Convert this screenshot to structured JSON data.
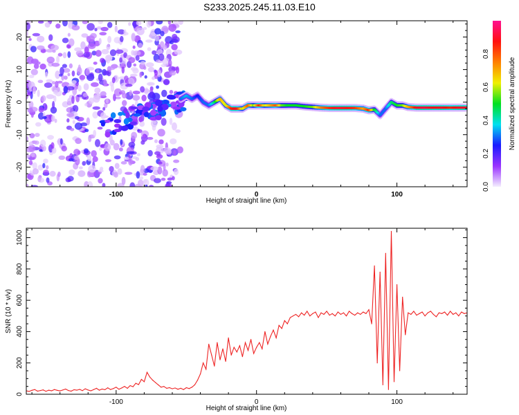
{
  "chart_data": [
    {
      "type": "heatmap",
      "title": "S233.2025.245.11.03.E10",
      "xlabel": "Height of straight line (km)",
      "ylabel": "Frequency (Hz)",
      "xlim": [
        -164,
        150
      ],
      "ylim": [
        -26,
        25
      ],
      "xticks": [
        -100,
        0,
        100
      ],
      "yticks": [
        -20,
        -10,
        0,
        10,
        20
      ],
      "colorbar": {
        "label": "Normalized spectral amplitude",
        "range": [
          0,
          1
        ],
        "ticks": [
          "0.0",
          "0.2",
          "0.4",
          "0.6",
          "0.8"
        ],
        "colors": [
          "#f4eefe",
          "#9a33ff",
          "#1a1aff",
          "#00e0f0",
          "#00e020",
          "#f0f000",
          "#ff8000",
          "#ff1010",
          "#ff1090"
        ]
      },
      "ridge": [
        [
          -54,
          1,
          0.3
        ],
        [
          -50,
          2,
          0.35
        ],
        [
          -46,
          1,
          0.3
        ],
        [
          -42,
          2,
          0.25
        ],
        [
          -38,
          0,
          0.3
        ],
        [
          -34,
          -1,
          0.3
        ],
        [
          -30,
          0,
          0.45
        ],
        [
          -26,
          1,
          0.7
        ],
        [
          -22,
          -1,
          0.6
        ],
        [
          -18,
          -2,
          0.85
        ],
        [
          -14,
          -2,
          0.9
        ],
        [
          -10,
          -2,
          0.6
        ],
        [
          -6,
          -1,
          0.8
        ],
        [
          -2,
          -1,
          0.55
        ],
        [
          2,
          -1,
          0.85
        ],
        [
          6,
          -1,
          0.6
        ],
        [
          10,
          -1,
          0.7
        ],
        [
          14,
          -1,
          0.8
        ],
        [
          18,
          -1,
          0.55
        ],
        [
          22,
          -1,
          0.5
        ],
        [
          28,
          -1,
          0.5
        ],
        [
          34,
          -1.3,
          0.5
        ],
        [
          40,
          -1.5,
          0.55
        ],
        [
          46,
          -1.7,
          0.75
        ],
        [
          52,
          -1.8,
          0.85
        ],
        [
          58,
          -1.8,
          0.9
        ],
        [
          64,
          -1.8,
          0.88
        ],
        [
          70,
          -1.8,
          0.85
        ],
        [
          76,
          -2,
          0.7
        ],
        [
          80,
          -2.5,
          0.85
        ],
        [
          84,
          -2.3,
          0.5
        ],
        [
          88,
          -4,
          0.3
        ],
        [
          92,
          -2,
          0.3
        ],
        [
          96,
          0,
          0.45
        ],
        [
          100,
          -1,
          0.5
        ],
        [
          104,
          -1,
          0.55
        ],
        [
          108,
          -1.5,
          0.7
        ],
        [
          114,
          -1.7,
          0.9
        ],
        [
          120,
          -1.7,
          0.92
        ],
        [
          126,
          -1.7,
          0.88
        ],
        [
          132,
          -1.7,
          0.9
        ],
        [
          138,
          -1.7,
          0.85
        ],
        [
          144,
          -1.7,
          0.9
        ],
        [
          150,
          -1.7,
          0.9
        ]
      ],
      "noise_region": {
        "x": [
          -164,
          -54
        ],
        "freq": [
          -26,
          25
        ],
        "amplitude": [
          0.02,
          0.25
        ]
      }
    },
    {
      "type": "line",
      "xlabel": "Height of straight line (km)",
      "ylabel": "SNR (10 * v/v)",
      "xlim": [
        -164,
        150
      ],
      "ylim": [
        0,
        1060
      ],
      "xticks": [
        -100,
        0,
        100
      ],
      "yticks": [
        0,
        200,
        400,
        600,
        800,
        1000
      ],
      "color": "#ee2222",
      "x_start": -164,
      "x_step": 2,
      "values": [
        22,
        18,
        25,
        30,
        20,
        24,
        28,
        19,
        26,
        22,
        30,
        25,
        21,
        27,
        33,
        24,
        20,
        29,
        26,
        31,
        23,
        35,
        27,
        22,
        30,
        38,
        26,
        33,
        29,
        41,
        30,
        36,
        45,
        32,
        40,
        50,
        38,
        55,
        48,
        70,
        62,
        95,
        80,
        140,
        110,
        90,
        75,
        60,
        45,
        50,
        38,
        42,
        35,
        40,
        32,
        38,
        30,
        42,
        36,
        45,
        60,
        90,
        130,
        200,
        160,
        320,
        250,
        180,
        330,
        220,
        290,
        210,
        360,
        250,
        300,
        270,
        310,
        240,
        330,
        280,
        350,
        260,
        300,
        330,
        290,
        400,
        320,
        370,
        410,
        360,
        440,
        420,
        470,
        450,
        490,
        500,
        510,
        495,
        520,
        505,
        530,
        500,
        515,
        525,
        490,
        520,
        510,
        530,
        505,
        515,
        500,
        525,
        510,
        520,
        500,
        530,
        515,
        505,
        520,
        510,
        525,
        515,
        540,
        450,
        820,
        200,
        780,
        60,
        900,
        30,
        1040,
        80,
        700,
        150,
        620,
        380,
        520,
        510,
        530,
        505,
        515,
        525,
        500,
        520,
        530,
        510,
        495,
        520,
        515,
        525,
        505,
        530,
        510,
        520,
        500,
        525,
        515,
        520
      ]
    }
  ]
}
